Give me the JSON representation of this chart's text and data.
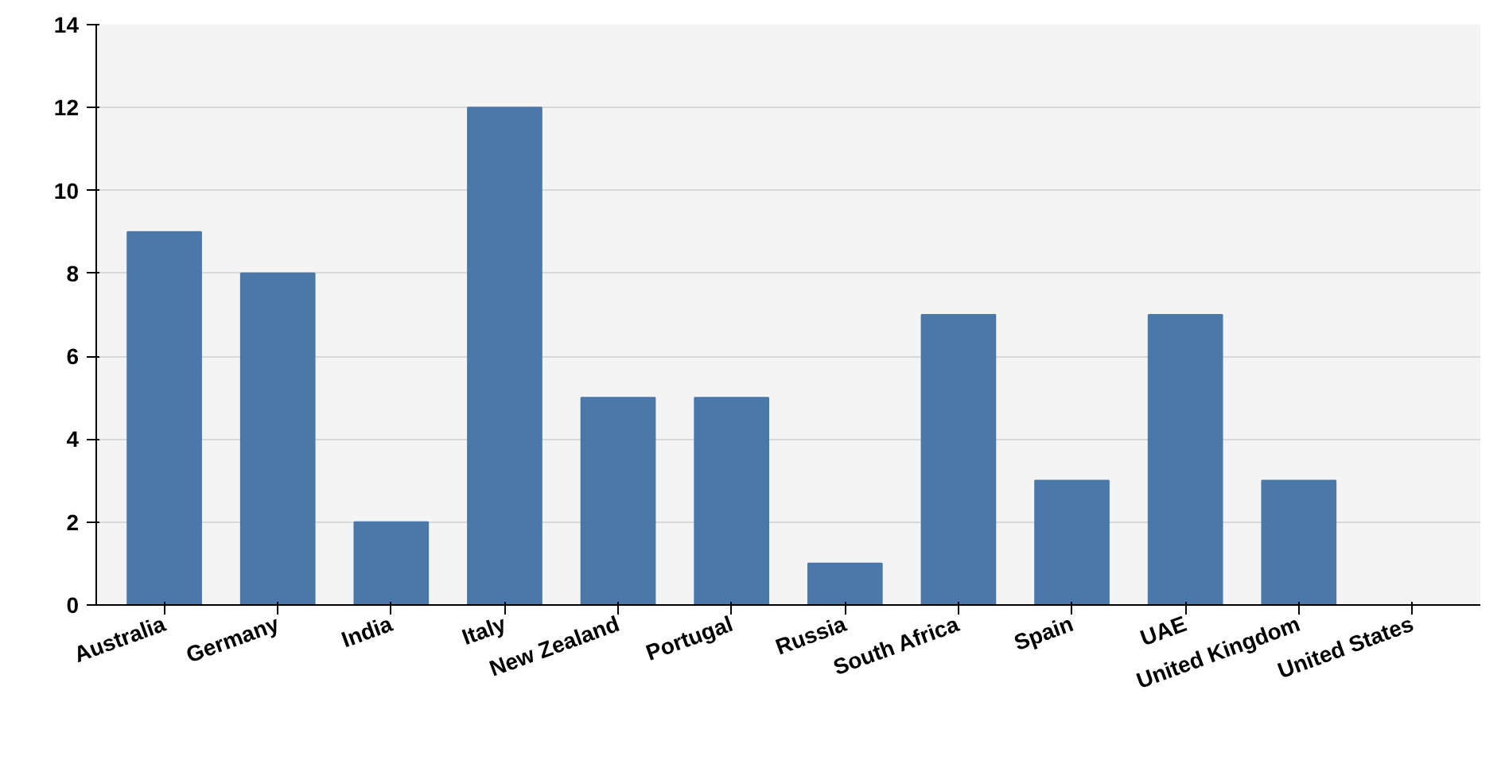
{
  "chart_data": {
    "type": "bar",
    "categories": [
      "Australia",
      "Germany",
      "India",
      "Italy",
      "New Zealand",
      "Portugal",
      "Russia",
      "South Africa",
      "Spain",
      "UAE",
      "United Kingdom",
      "United States"
    ],
    "values": [
      9,
      8,
      2,
      12,
      5,
      5,
      1,
      7,
      3,
      7,
      3,
      0
    ],
    "color": "#4a78a8",
    "ylim": [
      0,
      14
    ],
    "yticks": [
      0,
      2,
      4,
      6,
      8,
      10,
      12,
      14
    ],
    "grid": "y"
  }
}
